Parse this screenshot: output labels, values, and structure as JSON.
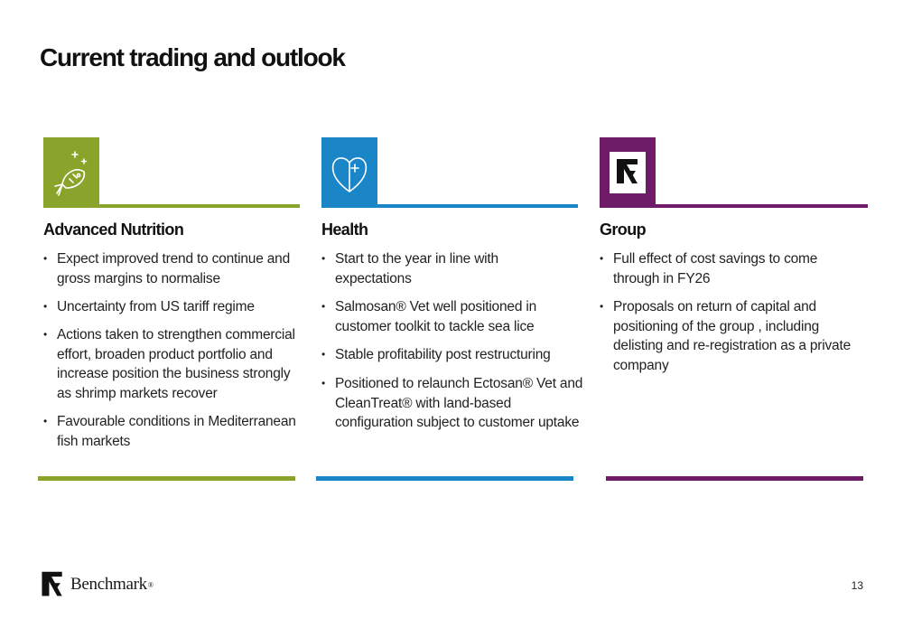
{
  "title": "Current trading and outlook",
  "colors": {
    "green": "#8aa32b",
    "blue": "#1a86c8",
    "purple": "#6e1c67"
  },
  "columns": [
    {
      "heading": "Advanced Nutrition",
      "icon": "fish-icon",
      "bullets": [
        "Expect improved trend to continue and gross margins to normalise",
        "Uncertainty from US tariff regime",
        "Actions taken to strengthen commercial effort, broaden product portfolio and increase position the business strongly as shrimp markets recover",
        "Favourable conditions in Mediterranean fish markets"
      ]
    },
    {
      "heading": "Health",
      "icon": "heart-plus-icon",
      "bullets": [
        "Start to the year in line with expectations",
        "Salmosan® Vet well positioned in customer toolkit to tackle sea lice",
        "Stable profitability post restructuring",
        "Positioned to relaunch Ectosan® Vet and CleanTreat® with land-based configuration subject to customer uptake"
      ]
    },
    {
      "heading": "Group",
      "icon": "benchmark-logo-icon",
      "bullets": [
        "Full effect of cost savings to come through in FY26",
        "Proposals on return of capital and positioning of the group , including delisting and re-registration as a private company"
      ]
    }
  ],
  "footer": {
    "brand": "Benchmark",
    "reg": "®",
    "page_number": "13"
  }
}
